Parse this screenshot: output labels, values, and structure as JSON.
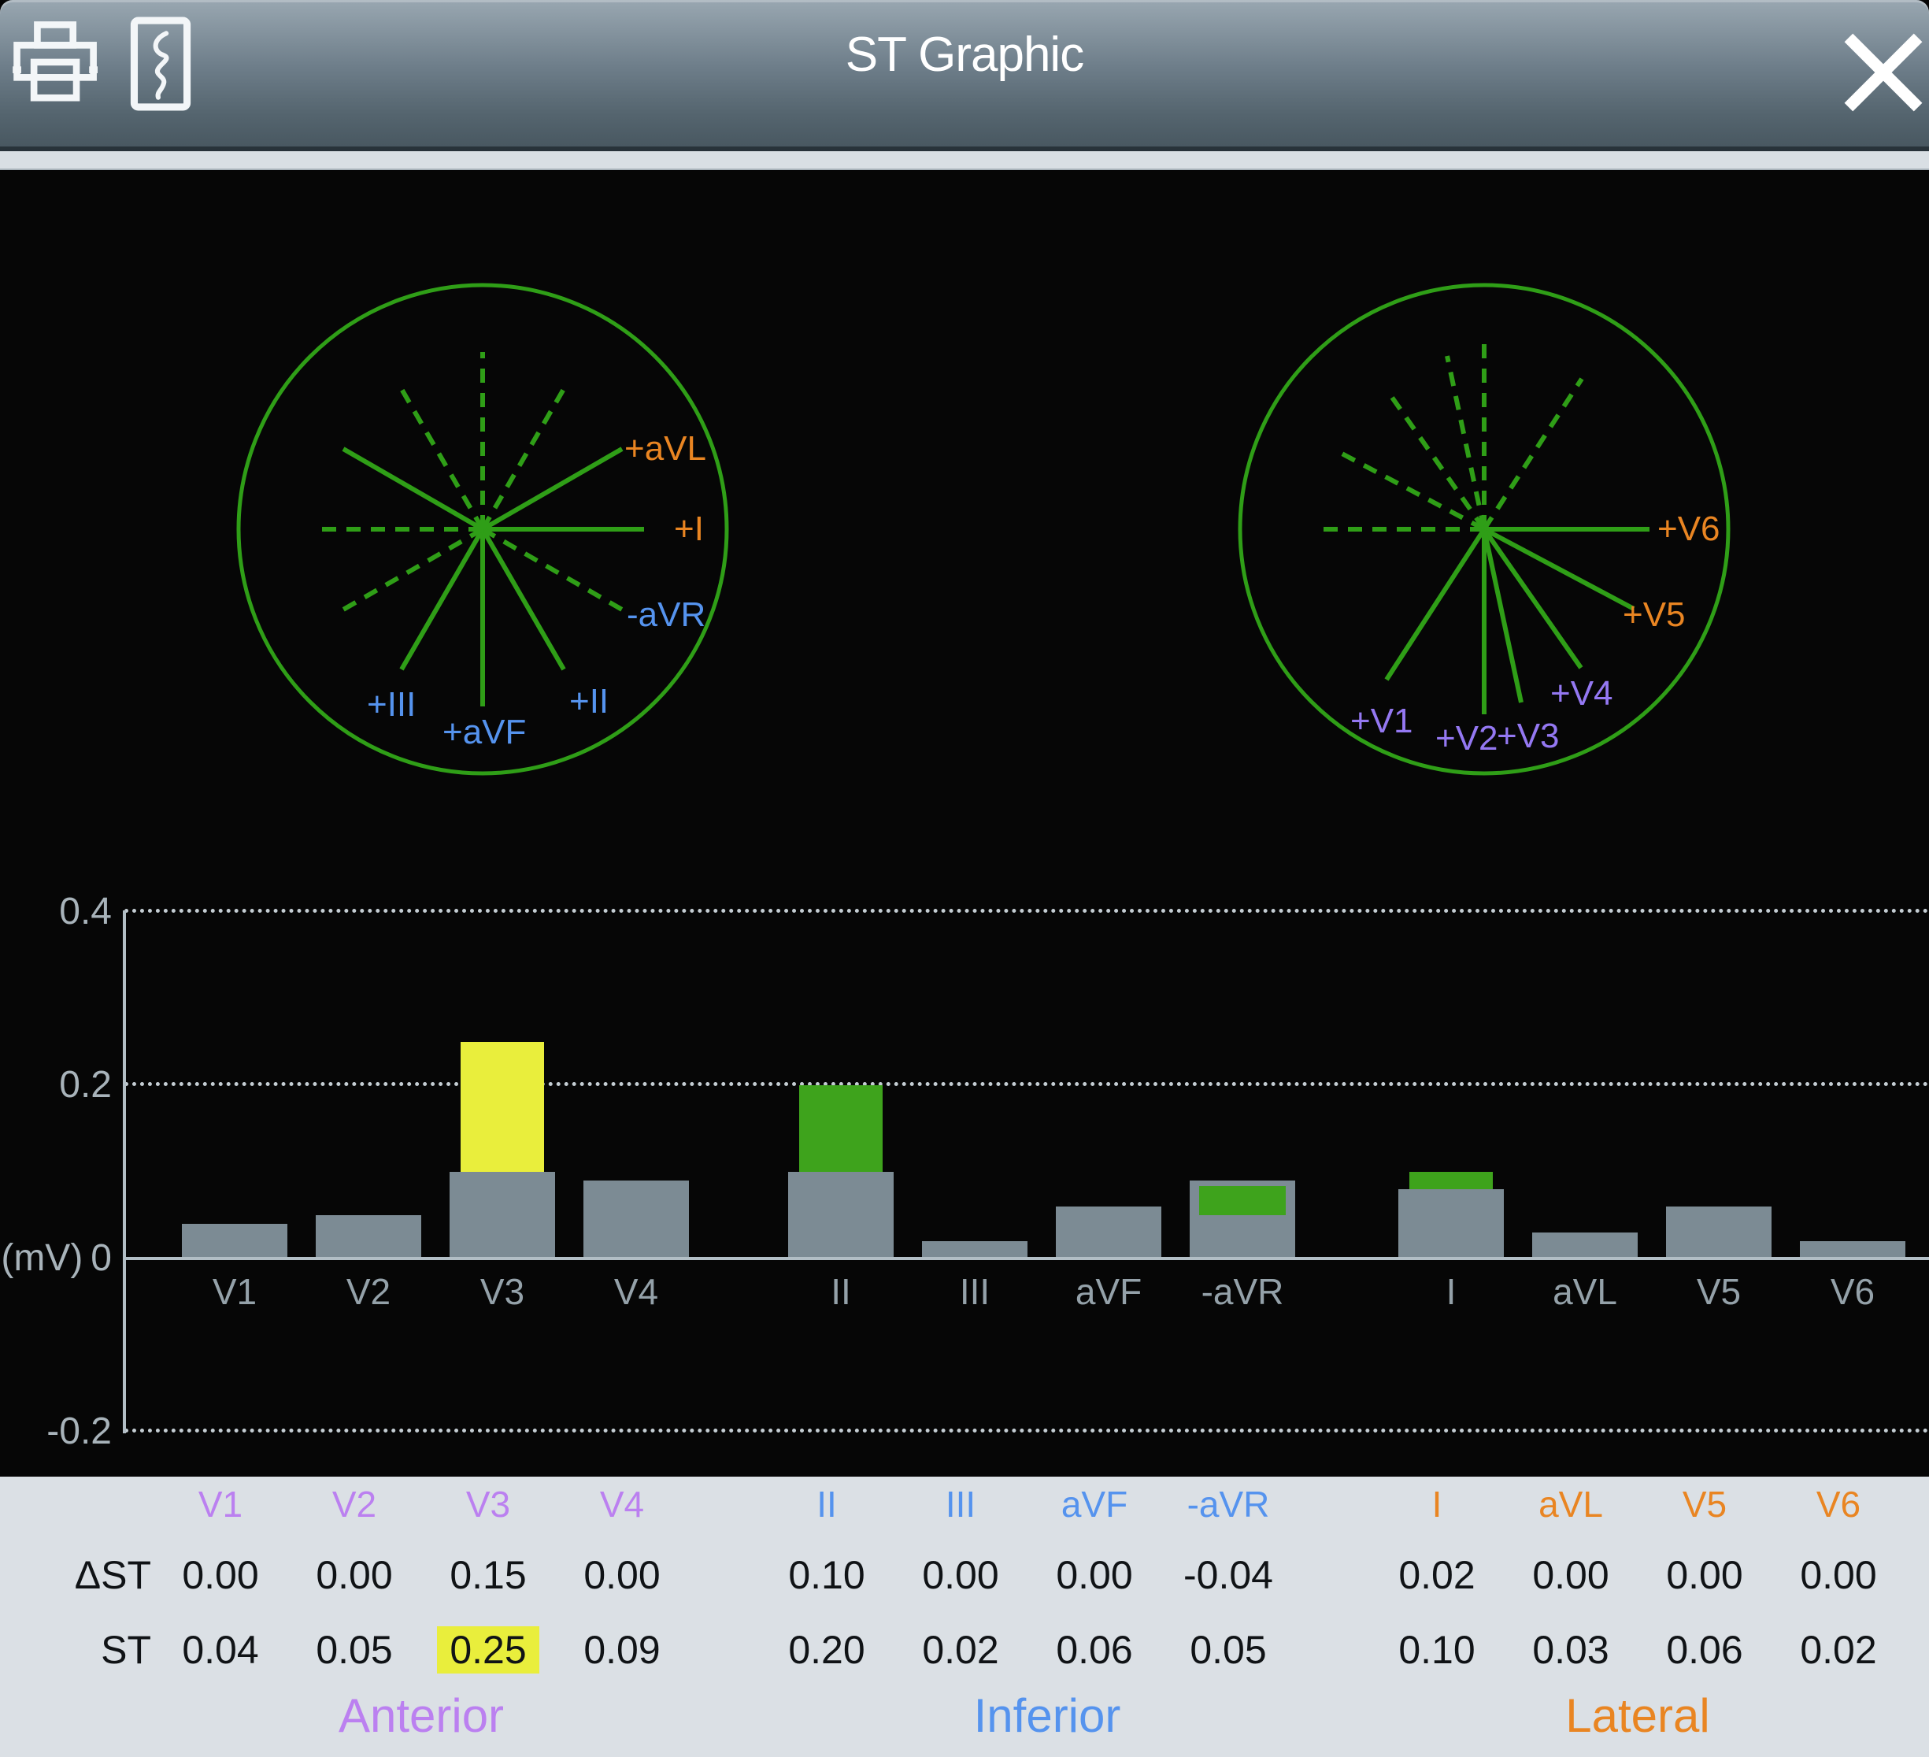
{
  "window": {
    "title": "ST Graphic"
  },
  "toolbar": {
    "print_icon": "printer",
    "record_icon": "recording-strip",
    "close_icon": "close"
  },
  "colors": {
    "orange": "#e98522",
    "blue": "#5593ee",
    "purple": "#bb80f0",
    "vpurple": "#9478f2",
    "yellow": "#e9ee3c",
    "green": "#3ea31c",
    "bar_gray": "#7c8b94",
    "circle_green": "#2f9e17",
    "table_bg": "#dbe0e5"
  },
  "diagrams": {
    "frontal": {
      "labels": [
        {
          "text": "+aVL",
          "color": "orange"
        },
        {
          "text": "+I",
          "color": "orange"
        },
        {
          "text": "-aVR",
          "color": "blue"
        },
        {
          "text": "+II",
          "color": "blue"
        },
        {
          "text": "+aVF",
          "color": "blue"
        },
        {
          "text": "+III",
          "color": "blue"
        }
      ]
    },
    "horizontal": {
      "labels": [
        {
          "text": "+V6",
          "color": "orange"
        },
        {
          "text": "+V5",
          "color": "orange"
        },
        {
          "text": "+V4",
          "color": "vpurple"
        },
        {
          "text": "+V3",
          "color": "vpurple"
        },
        {
          "text": "+V2",
          "color": "vpurple"
        },
        {
          "text": "+V1",
          "color": "vpurple"
        }
      ]
    }
  },
  "chart_data": {
    "type": "bar",
    "unit": "(mV)",
    "ylim": [
      -0.2,
      0.4
    ],
    "yticks": [
      0.4,
      0.2,
      0,
      -0.2
    ],
    "grid": "dotted horizontal lines at 0.4, 0.2 and -0.2; solid baseline at 0",
    "categories": [
      "V1",
      "V2",
      "V3",
      "V4",
      "II",
      "III",
      "aVF",
      "-aVR",
      "I",
      "aVL",
      "V5",
      "V6"
    ],
    "series": [
      {
        "name": "ST",
        "values": [
          0.04,
          0.05,
          0.25,
          0.09,
          0.2,
          0.02,
          0.06,
          0.05,
          0.1,
          0.03,
          0.06,
          0.02
        ]
      },
      {
        "name": "ΔST",
        "values": [
          0.0,
          0.0,
          0.15,
          0.0,
          0.1,
          0.0,
          0.0,
          -0.04,
          0.02,
          0.0,
          0.0,
          0.0
        ]
      }
    ],
    "bar_segment_colors": {
      "V3": "yellow",
      "II": "green",
      "-aVR": "green",
      "I": "green"
    }
  },
  "table": {
    "row_labels": {
      "delta": "ΔST",
      "st": "ST"
    },
    "groups": [
      {
        "label": "Anterior",
        "color": "purple",
        "leads": [
          "V1",
          "V2",
          "V3",
          "V4"
        ],
        "delta": [
          "0.00",
          "0.00",
          "0.15",
          "0.00"
        ],
        "st": [
          "0.04",
          "0.05",
          "0.25",
          "0.09"
        ]
      },
      {
        "label": "Inferior",
        "color": "blue",
        "leads": [
          "II",
          "III",
          "aVF",
          "-aVR"
        ],
        "delta": [
          "0.10",
          "0.00",
          "0.00",
          "-0.04"
        ],
        "st": [
          "0.20",
          "0.02",
          "0.06",
          "0.05"
        ]
      },
      {
        "label": "Lateral",
        "color": "orange",
        "leads": [
          "I",
          "aVL",
          "V5",
          "V6"
        ],
        "delta": [
          "0.02",
          "0.00",
          "0.00",
          "0.00"
        ],
        "st": [
          "0.10",
          "0.03",
          "0.06",
          "0.02"
        ]
      }
    ],
    "highlighted_cell": {
      "lead": "V3",
      "row": "ST",
      "value": "0.25"
    }
  }
}
